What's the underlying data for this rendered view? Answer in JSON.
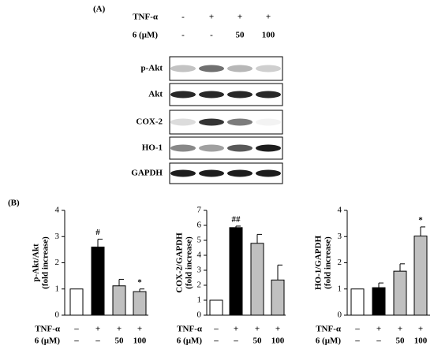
{
  "panel_a": {
    "label": "(A)",
    "treatments": [
      {
        "label": "TNF-α",
        "marks": [
          "-",
          "+",
          "+",
          "+"
        ]
      },
      {
        "label": "6 (μM)",
        "marks": [
          "-",
          "-",
          "50",
          "100"
        ]
      }
    ],
    "blots": [
      "p-Akt",
      "Akt",
      "COX-2",
      "HO-1",
      "GAPDH"
    ]
  },
  "panel_b": {
    "label": "(B)"
  },
  "chart_data": [
    {
      "type": "bar",
      "ylabel": [
        "p-Akt/Akt",
        "(fold increase)"
      ],
      "values": [
        1,
        2.6,
        1.12,
        0.9
      ],
      "errors": [
        0,
        0.3,
        0.25,
        0.1
      ],
      "significance": [
        null,
        "#",
        null,
        "*"
      ],
      "colors": [
        "#ffffff",
        "#000000",
        "#c0c0c0",
        "#c0c0c0"
      ],
      "ylim": [
        0,
        4
      ],
      "yticks": [
        0,
        1,
        2,
        3,
        4
      ],
      "treatments": [
        {
          "label": "TNF-α",
          "marks": [
            "–",
            "+",
            "+",
            "+"
          ]
        },
        {
          "label": "6 (μM)",
          "marks": [
            "–",
            "–",
            "50",
            "100"
          ]
        }
      ]
    },
    {
      "type": "bar",
      "ylabel": [
        "COX-2/GAPDH",
        "(fold increase)"
      ],
      "values": [
        1,
        5.85,
        4.8,
        2.35
      ],
      "errors": [
        0,
        0.1,
        0.6,
        1.0
      ],
      "significance": [
        null,
        "##",
        null,
        null
      ],
      "colors": [
        "#ffffff",
        "#000000",
        "#c0c0c0",
        "#c0c0c0"
      ],
      "ylim": [
        0,
        7
      ],
      "yticks": [
        0,
        1,
        2,
        3,
        4,
        5,
        6,
        7
      ],
      "treatments": [
        {
          "label": "TNF-α",
          "marks": [
            "–",
            "+",
            "+",
            "+"
          ]
        },
        {
          "label": "6 (μM)",
          "marks": [
            "–",
            "–",
            "50",
            "100"
          ]
        }
      ]
    },
    {
      "type": "bar",
      "ylabel": [
        "HO-1/GAPDH",
        "(fold increase)"
      ],
      "values": [
        1,
        1.05,
        1.68,
        3.02
      ],
      "errors": [
        0,
        0.18,
        0.28,
        0.35
      ],
      "significance": [
        null,
        null,
        null,
        "*"
      ],
      "colors": [
        "#ffffff",
        "#000000",
        "#c0c0c0",
        "#c0c0c0"
      ],
      "ylim": [
        0,
        4
      ],
      "yticks": [
        0,
        1,
        2,
        3,
        4
      ],
      "treatments": [
        {
          "label": "TNF-α",
          "marks": [
            "–",
            "+",
            "+",
            "+"
          ]
        },
        {
          "label": "6 (μM)",
          "marks": [
            "–",
            "–",
            "50",
            "100"
          ]
        }
      ]
    }
  ]
}
